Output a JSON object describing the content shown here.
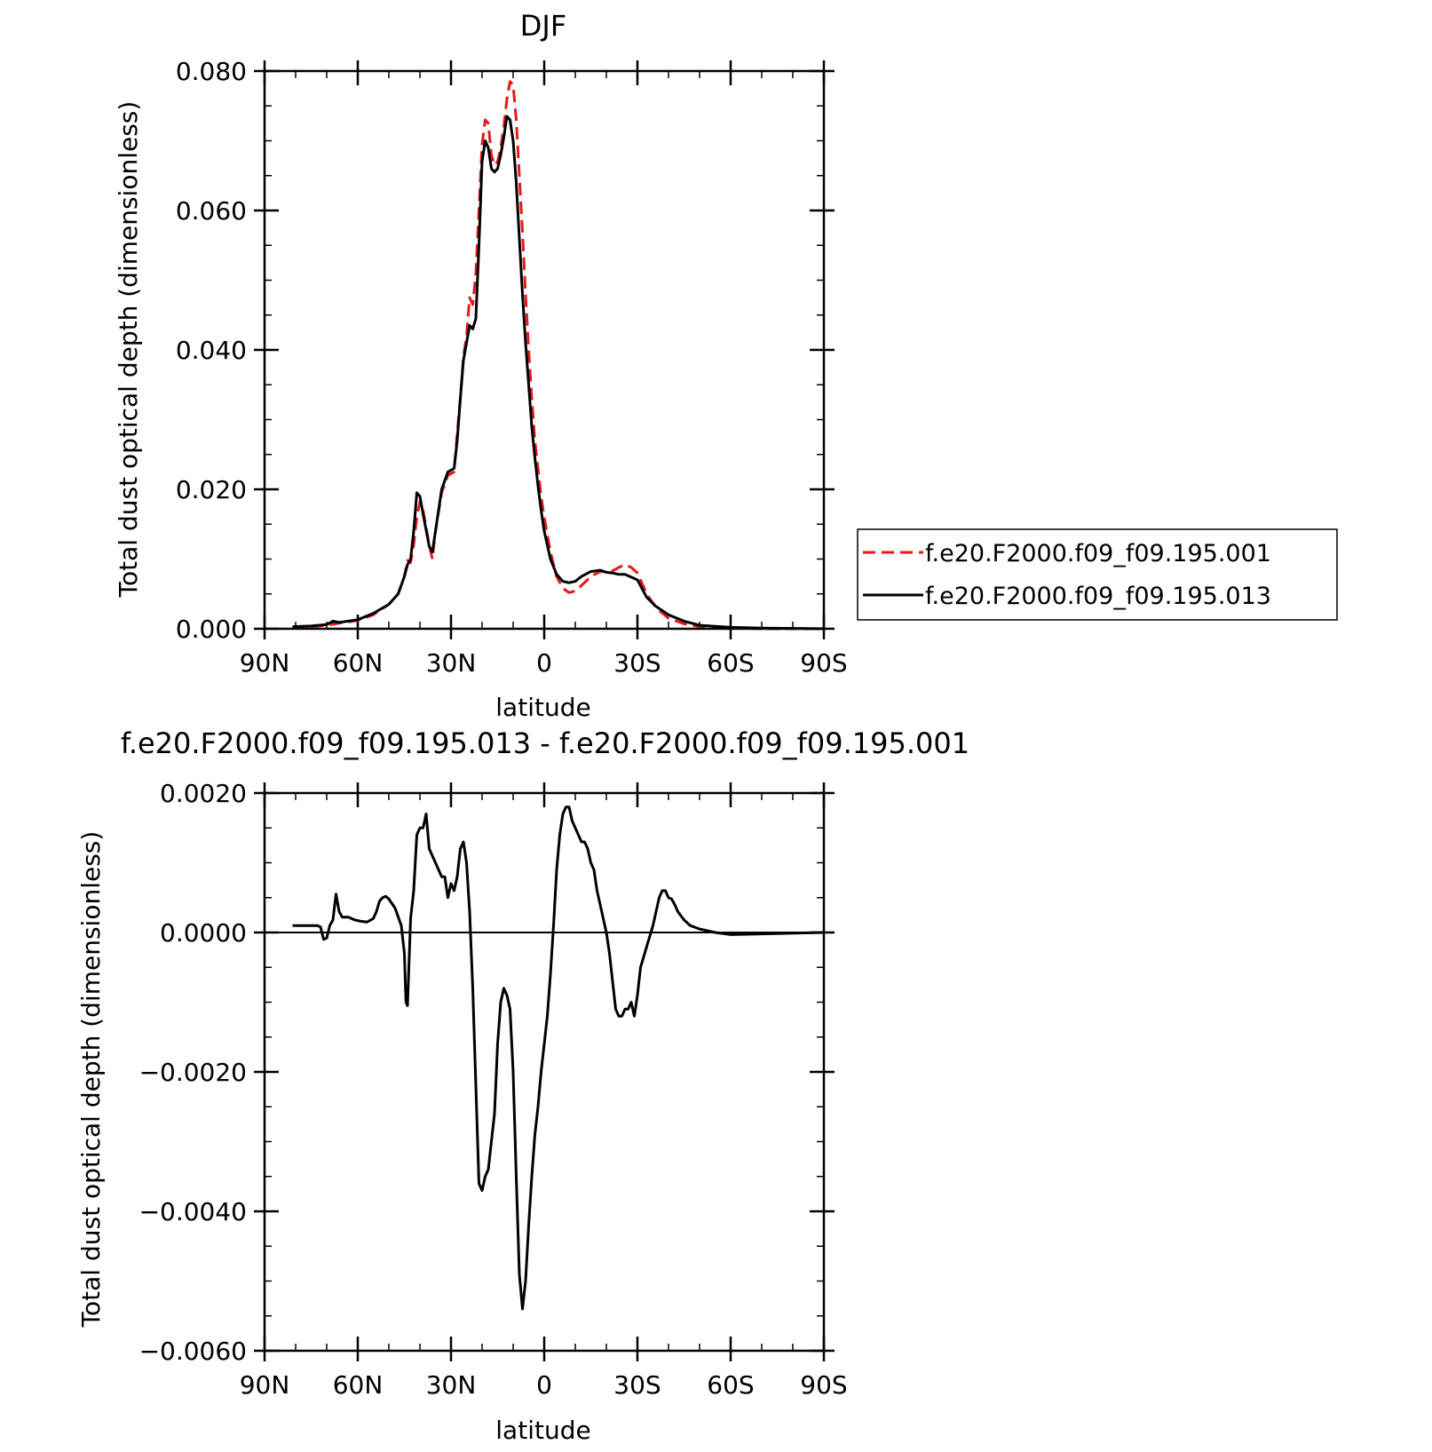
{
  "chart_data": [
    {
      "type": "line",
      "title": "DJF",
      "xlabel": "latitude",
      "ylabel": "Total dust optical depth (dimensionless)",
      "xlim": [
        90,
        -90
      ],
      "ylim": [
        0,
        0.08
      ],
      "x_ticks": [
        {
          "value": 90,
          "label": "90N"
        },
        {
          "value": 60,
          "label": "60N"
        },
        {
          "value": 30,
          "label": "30N"
        },
        {
          "value": 0,
          "label": "0"
        },
        {
          "value": -30,
          "label": "30S"
        },
        {
          "value": -60,
          "label": "60S"
        },
        {
          "value": -90,
          "label": "90S"
        }
      ],
      "y_ticks": [
        {
          "value": 0,
          "label": "0.000"
        },
        {
          "value": 0.02,
          "label": "0.020"
        },
        {
          "value": 0.04,
          "label": "0.040"
        },
        {
          "value": 0.06,
          "label": "0.060"
        },
        {
          "value": 0.08,
          "label": "0.080"
        }
      ],
      "legend_position": "right",
      "series": [
        {
          "name": "f.e20.F2000.f09_f09.195.001",
          "color": "#e41a1c",
          "dash": "dashed",
          "x": [
            81,
            75,
            70,
            66,
            60,
            55,
            50,
            47,
            45,
            44,
            43,
            42,
            41,
            40,
            39,
            37,
            36,
            35,
            33,
            31,
            29,
            28,
            27,
            26,
            25,
            24,
            23,
            22,
            21,
            20,
            19,
            18,
            17,
            16,
            15,
            14,
            13,
            12,
            11,
            10,
            9,
            8,
            7,
            6,
            5,
            4,
            3,
            2,
            1,
            0,
            -2,
            -4,
            -6,
            -8,
            -10,
            -12,
            -15,
            -18,
            -20,
            -22,
            -24,
            -26,
            -28,
            -30,
            -33,
            -36,
            -40,
            -45,
            -50,
            -60,
            -70,
            -90
          ],
          "y": [
            0.0002,
            0.0003,
            0.0005,
            0.0008,
            0.0012,
            0.002,
            0.0035,
            0.005,
            0.0075,
            0.0098,
            0.0095,
            0.012,
            0.016,
            0.0182,
            0.017,
            0.012,
            0.01,
            0.014,
            0.0195,
            0.022,
            0.0225,
            0.028,
            0.033,
            0.039,
            0.042,
            0.0475,
            0.0465,
            0.051,
            0.06,
            0.0695,
            0.073,
            0.0725,
            0.068,
            0.0665,
            0.067,
            0.069,
            0.072,
            0.076,
            0.0785,
            0.078,
            0.073,
            0.065,
            0.057,
            0.048,
            0.04,
            0.033,
            0.027,
            0.023,
            0.019,
            0.016,
            0.011,
            0.0075,
            0.0058,
            0.0052,
            0.0054,
            0.0062,
            0.0075,
            0.0082,
            0.0082,
            0.0083,
            0.0088,
            0.0092,
            0.0088,
            0.008,
            0.005,
            0.003,
            0.0015,
            0.0007,
            0.0003,
            0.0001,
            0.0,
            0.0
          ]
        },
        {
          "name": "f.e20.F2000.f09_f09.195.013",
          "color": "#000000",
          "dash": "solid",
          "x": [
            81,
            75,
            70,
            68,
            66,
            60,
            55,
            50,
            47,
            45,
            44,
            43,
            42,
            41,
            40,
            39,
            37,
            36,
            35,
            33,
            31,
            29,
            28,
            27,
            26,
            25,
            24,
            23,
            22,
            21,
            20,
            19,
            18,
            17,
            16,
            15,
            14,
            13,
            12,
            11,
            10,
            9,
            8,
            7,
            6,
            5,
            4,
            3,
            2,
            1,
            0,
            -2,
            -4,
            -6,
            -8,
            -10,
            -12,
            -15,
            -18,
            -20,
            -22,
            -24,
            -26,
            -28,
            -30,
            -33,
            -36,
            -40,
            -45,
            -50,
            -60,
            -70,
            -90
          ],
          "y": [
            0.0003,
            0.0004,
            0.0006,
            0.0011,
            0.0009,
            0.0013,
            0.0022,
            0.0035,
            0.005,
            0.0075,
            0.0092,
            0.01,
            0.014,
            0.0195,
            0.019,
            0.0165,
            0.0118,
            0.011,
            0.014,
            0.02,
            0.0225,
            0.023,
            0.027,
            0.033,
            0.0385,
            0.041,
            0.0435,
            0.043,
            0.0445,
            0.055,
            0.067,
            0.07,
            0.069,
            0.066,
            0.0655,
            0.066,
            0.068,
            0.0705,
            0.0735,
            0.073,
            0.07,
            0.064,
            0.056,
            0.048,
            0.041,
            0.035,
            0.029,
            0.0245,
            0.0205,
            0.017,
            0.014,
            0.01,
            0.0078,
            0.0068,
            0.0066,
            0.0068,
            0.0075,
            0.0082,
            0.0084,
            0.0081,
            0.008,
            0.0078,
            0.0078,
            0.0074,
            0.007,
            0.0045,
            0.0032,
            0.002,
            0.0011,
            0.0005,
            0.0002,
            0.0001,
            0.0
          ]
        }
      ]
    },
    {
      "type": "line",
      "title": "f.e20.F2000.f09_f09.195.013 - f.e20.F2000.f09_f09.195.001",
      "xlabel": "latitude",
      "ylabel": "Total dust optical depth (dimensionless)",
      "xlim": [
        90,
        -90
      ],
      "ylim": [
        -0.006,
        0.002
      ],
      "x_ticks": [
        {
          "value": 90,
          "label": "90N"
        },
        {
          "value": 60,
          "label": "60N"
        },
        {
          "value": 30,
          "label": "30N"
        },
        {
          "value": 0,
          "label": "0"
        },
        {
          "value": -30,
          "label": "30S"
        },
        {
          "value": -60,
          "label": "60S"
        },
        {
          "value": -90,
          "label": "90S"
        }
      ],
      "y_ticks": [
        {
          "value": 0.002,
          "label": "0.0020"
        },
        {
          "value": 0,
          "label": "0.0000"
        },
        {
          "value": -0.002,
          "label": "−0.0020"
        },
        {
          "value": -0.004,
          "label": "−0.0040"
        },
        {
          "value": -0.006,
          "label": "−0.0060"
        }
      ],
      "series": [
        {
          "color": "#000000",
          "dash": "solid",
          "x": [
            81,
            79,
            77,
            75,
            73,
            72,
            71,
            70,
            69,
            68,
            67,
            66,
            65,
            63,
            61,
            59,
            57,
            55,
            54,
            53,
            52,
            51,
            50,
            48,
            46,
            45,
            44.5,
            44,
            43,
            42,
            41,
            40,
            39,
            38.5,
            38,
            37,
            36,
            35,
            34,
            33,
            32,
            31,
            30,
            29,
            28,
            27,
            26,
            25,
            24,
            23,
            22,
            21,
            20,
            19,
            18,
            17,
            16,
            15,
            14,
            13,
            12,
            11,
            10,
            9,
            8,
            7,
            6,
            5,
            4,
            3,
            2,
            1,
            0,
            -1,
            -2,
            -3,
            -4,
            -5,
            -6,
            -7,
            -8,
            -9,
            -10,
            -11,
            -12,
            -13,
            -14,
            -15,
            -16,
            -17,
            -18,
            -19,
            -20,
            -21,
            -22,
            -23,
            -24,
            -25,
            -26,
            -27,
            -28,
            -29,
            -30,
            -31,
            -33,
            -35,
            -37,
            -38,
            -39,
            -40,
            -41,
            -42,
            -43,
            -45,
            -47,
            -50,
            -55,
            -60,
            -70,
            -90
          ],
          "y": [
            0.0001,
            0.0001,
            0.0001,
            0.0001,
            0.0001,
            8e-05,
            -0.0001,
            -8e-05,
            0.0001,
            0.00018,
            0.00055,
            0.0003,
            0.00022,
            0.00022,
            0.00018,
            0.00016,
            0.00015,
            0.0002,
            0.0003,
            0.00045,
            0.0005,
            0.00052,
            0.00048,
            0.00035,
            0.0001,
            -0.0003,
            -0.001,
            -0.00105,
            0.0002,
            0.0006,
            0.0014,
            0.0015,
            0.0015,
            0.0016,
            0.0017,
            0.0012,
            0.0011,
            0.001,
            0.0009,
            0.0008,
            0.0008,
            0.0005,
            0.0007,
            0.0006,
            0.0008,
            0.0012,
            0.0013,
            0.001,
            0.0003,
            -0.0008,
            -0.0022,
            -0.0036,
            -0.0037,
            -0.0035,
            -0.0034,
            -0.003,
            -0.0026,
            -0.0016,
            -0.001,
            -0.0008,
            -0.0009,
            -0.0011,
            -0.002,
            -0.0035,
            -0.0049,
            -0.0054,
            -0.005,
            -0.0042,
            -0.0035,
            -0.0029,
            -0.0025,
            -0.002,
            -0.0016,
            -0.0012,
            -0.0006,
            0.0001,
            0.0009,
            0.0014,
            0.0017,
            0.0018,
            0.0018,
            0.0016,
            0.0015,
            0.0014,
            0.0013,
            0.0013,
            0.0012,
            0.001,
            0.0009,
            0.0006,
            0.0004,
            0.0002,
            0.0,
            -0.0003,
            -0.0007,
            -0.0011,
            -0.0012,
            -0.0012,
            -0.0011,
            -0.0011,
            -0.001,
            -0.0012,
            -0.0009,
            -0.0005,
            -0.0002,
            0.0001,
            0.0005,
            0.0006,
            0.0006,
            0.0005,
            0.00048,
            0.0004,
            0.0003,
            0.00018,
            0.0001,
            5e-05,
            0.0,
            -3e-05,
            -2e-05,
            0.0
          ]
        }
      ]
    }
  ]
}
